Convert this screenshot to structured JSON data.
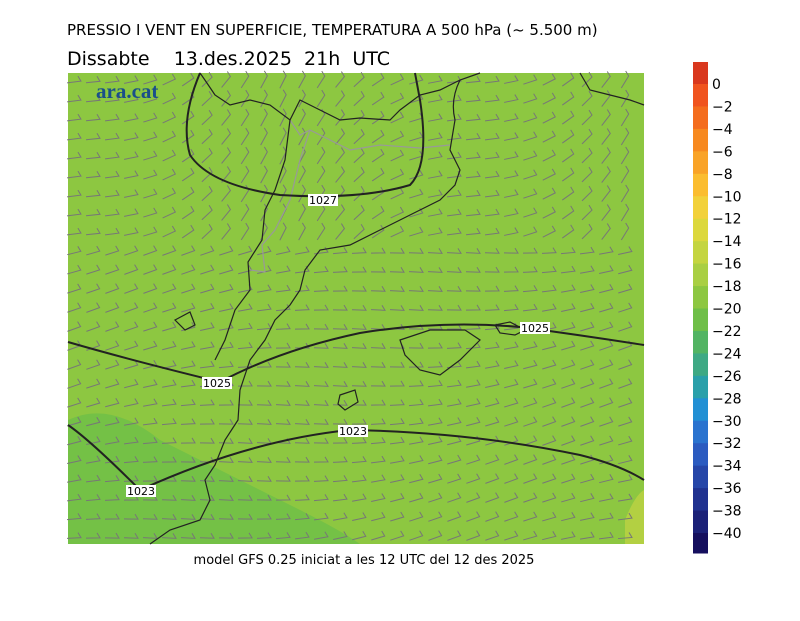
{
  "header": {
    "title": "PRESSIO I VENT EN SUPERFICIE, TEMPERATURA A 500 hPa (~ 5.500 m)",
    "subtitle": "Dissabte    13.des.2025  21h  UTC"
  },
  "logo": "ara.cat",
  "map": {
    "isobar_labels": [
      "1027",
      "1025",
      "1025",
      "1023",
      "1023"
    ]
  },
  "colorbar": {
    "labels": [
      "0",
      "−2",
      "−4",
      "−6",
      "−8",
      "−10",
      "−12",
      "−14",
      "−16",
      "−18",
      "−20",
      "−22",
      "−24",
      "−26",
      "−28",
      "−30",
      "−32",
      "−34",
      "−36",
      "−38",
      "−40"
    ],
    "colors": [
      "#d9381e",
      "#f0541f",
      "#f46d1e",
      "#f7891f",
      "#f9a327",
      "#fbbd2f",
      "#f2d13a",
      "#dcd83c",
      "#c4d540",
      "#a9cf43",
      "#8dc741",
      "#6fbf48",
      "#52b463",
      "#3ea984",
      "#2aa0aa",
      "#2290d4",
      "#2a73cf",
      "#2b5bc0",
      "#2646a8",
      "#203290",
      "#1b2178",
      "#150f5e"
    ]
  },
  "footer": "model GFS 0.25 iniciat a les 12 UTC del 12 des 2025"
}
